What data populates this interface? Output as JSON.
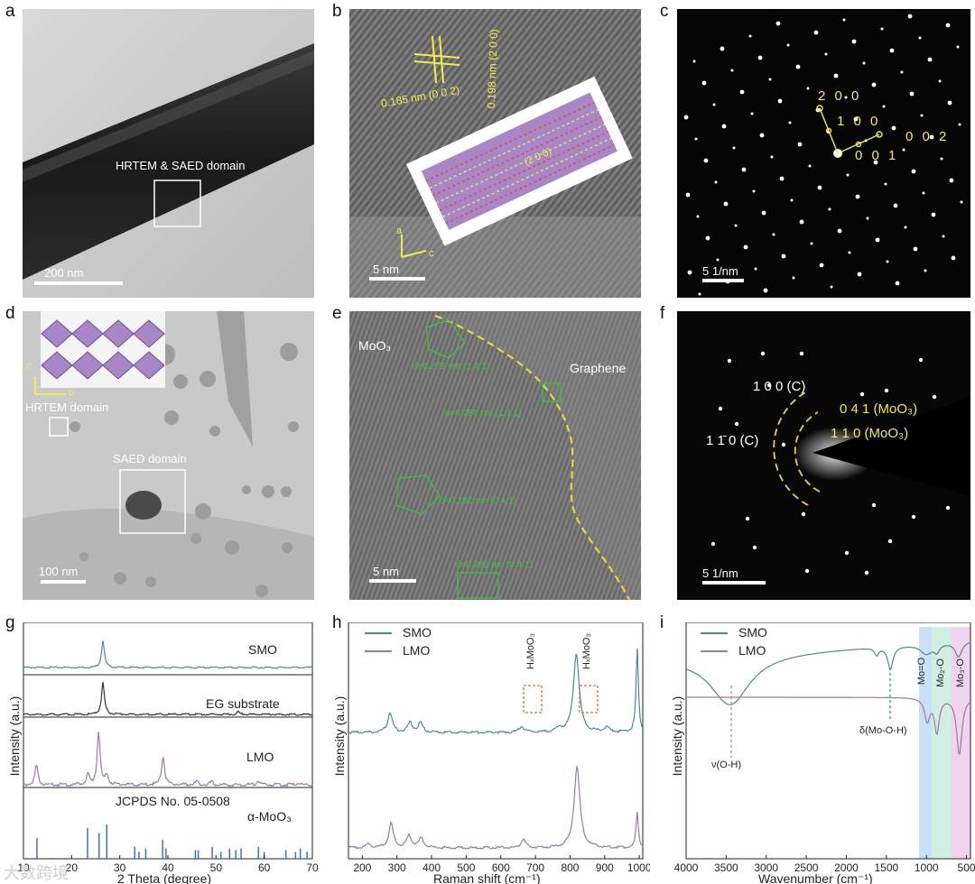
{
  "panel_labels": [
    "a",
    "b",
    "c",
    "d",
    "e",
    "f",
    "g",
    "h",
    "i"
  ],
  "a": {
    "domain_label": "HRTEM & SAED domain",
    "scale": "200 nm"
  },
  "b": {
    "d1": "0.185 nm (0 0 2)",
    "d2": "0.198 nm (2 0 0)",
    "plane": "(2 0 0)",
    "axis_a": "a",
    "axis_c": "c",
    "scale": "5 nm"
  },
  "c": {
    "s200": "2 0 0",
    "s100": "1 0 0",
    "s002": "0 0 2",
    "s001": "0 0 1",
    "scale": "5 1/nm"
  },
  "d": {
    "axis_c": "c",
    "axis_b": "b",
    "hrtem": "HRTEM domain",
    "saed": "SAED domain",
    "scale": "100 nm"
  },
  "e": {
    "moo3": "MoO₃",
    "graphene": "Graphene",
    "l1": "d=0.275 nm (1 4 1)",
    "l2": "d=0.288 nm (1 1 1)",
    "l3": "d=0.282 nm (0 4 1)",
    "l4": "d=0.282 nm (0 4 1)",
    "scale": "5 nm"
  },
  "f": {
    "r1": "1 0 0 (C)",
    "r2": "0 4 1 (MoO₃)",
    "r3": "1 1̄ 0 (C)",
    "r4": "1 1 0 (MoO₃)",
    "scale": "5 1/nm"
  },
  "g": {
    "labels": [
      "SMO",
      "EG substrate",
      "LMO",
      "JCPDS No. 05-0508",
      "α-MoO₃"
    ],
    "ylabel": "Intensity (a.u.)",
    "xlabel": "2 Theta (degree)",
    "ticks": [
      "10",
      "20",
      "30",
      "40",
      "50",
      "60",
      "70"
    ]
  },
  "h": {
    "legend": [
      "SMO",
      "LMO"
    ],
    "ann1": "HₓMoO₃",
    "ann2": "HₓMoO₃",
    "ylabel": "Intensity (a.u.)",
    "xlabel": "Raman shift (cm⁻¹)",
    "ticks": [
      "200",
      "300",
      "400",
      "500",
      "600",
      "700",
      "800",
      "900",
      "1000"
    ]
  },
  "i": {
    "legend": [
      "SMO",
      "LMO"
    ],
    "v": "ν(O-H)",
    "delta": "δ(Mo-O-H)",
    "b1": "Mo=O",
    "b2": "Mo₂-O",
    "b3": "Mo₃-O",
    "ylabel": "Intensity (a.u.)",
    "xlabel": "Wavenumber (cm⁻¹)",
    "ticks": [
      "4000",
      "3500",
      "3000",
      "2500",
      "2000",
      "1500",
      "1000",
      "500"
    ]
  },
  "watermark": "大数跨境",
  "colors": {
    "smo": "#4f8a8e",
    "lmo": "#9a7ca3",
    "yellow": "#f1ee4a",
    "green": "#39c43d",
    "dash": "#e8d73b"
  },
  "chart_data": [
    {
      "type": "line",
      "panel": "g",
      "xlabel": "2 Theta (degree)",
      "ylabel": "Intensity (a.u.)",
      "xlim": [
        10,
        70
      ],
      "series": [
        {
          "name": "SMO",
          "peaks": [
            [
              26.5,
              1.0
            ]
          ]
        },
        {
          "name": "EG substrate",
          "peaks": [
            [
              26.5,
              1.0
            ],
            [
              54.6,
              0.08
            ]
          ]
        },
        {
          "name": "LMO",
          "peaks": [
            [
              12.7,
              0.35
            ],
            [
              23.4,
              0.18
            ],
            [
              25.6,
              1.0
            ],
            [
              27.3,
              0.18
            ],
            [
              39.0,
              0.55
            ],
            [
              46.0,
              0.06
            ],
            [
              49.0,
              0.05
            ],
            [
              58.8,
              0.08
            ],
            [
              67.0,
              0.05
            ]
          ]
        },
        {
          "name": "JCPDS No. 05-0508",
          "sticks": [
            [
              12.8,
              0.6
            ],
            [
              23.3,
              0.9
            ],
            [
              25.7,
              0.75
            ],
            [
              27.3,
              1.0
            ],
            [
              33.1,
              0.35
            ],
            [
              34.0,
              0.2
            ],
            [
              35.4,
              0.3
            ],
            [
              38.9,
              0.55
            ],
            [
              39.6,
              0.3
            ],
            [
              45.7,
              0.25
            ],
            [
              46.3,
              0.25
            ],
            [
              49.2,
              0.35
            ],
            [
              51.0,
              0.2
            ],
            [
              52.8,
              0.3
            ],
            [
              54.1,
              0.25
            ],
            [
              55.2,
              0.3
            ],
            [
              58.8,
              0.35
            ],
            [
              60.0,
              0.2
            ],
            [
              64.5,
              0.25
            ],
            [
              66.5,
              0.2
            ],
            [
              67.5,
              0.3
            ],
            [
              68.9,
              0.2
            ]
          ]
        }
      ]
    },
    {
      "type": "line",
      "panel": "h",
      "xlabel": "Raman shift (cm⁻¹)",
      "ylabel": "Intensity (a.u.)",
      "xlim": [
        160,
        1010
      ],
      "series": [
        {
          "name": "SMO",
          "peaks": [
            [
              280,
              0.25
            ],
            [
              338,
              0.12
            ],
            [
              368,
              0.12
            ],
            [
              660,
              0.08
            ],
            [
              770,
              0.05
            ],
            [
              818,
              1.0
            ],
            [
              905,
              0.06
            ],
            [
              994,
              1.05
            ]
          ]
        },
        {
          "name": "LMO",
          "peaks": [
            [
              218,
              0.05
            ],
            [
              283,
              0.3
            ],
            [
              335,
              0.15
            ],
            [
              370,
              0.12
            ],
            [
              665,
              0.1
            ],
            [
              820,
              1.0
            ],
            [
              994,
              0.45
            ]
          ]
        }
      ]
    },
    {
      "type": "line",
      "panel": "i",
      "xlabel": "Wavenumber (cm⁻¹)",
      "ylabel": "Intensity (a.u.)",
      "xlim": [
        4000,
        450
      ],
      "series": [
        {
          "name": "SMO",
          "features": [
            [
              3450,
              -1.0
            ],
            [
              1620,
              -0.15
            ],
            [
              1450,
              -0.45
            ],
            [
              1000,
              -0.2
            ],
            [
              870,
              -0.15
            ],
            [
              600,
              -0.3
            ]
          ]
        },
        {
          "name": "LMO",
          "features": [
            [
              990,
              -0.6
            ],
            [
              870,
              -0.9
            ],
            [
              590,
              -1.5
            ]
          ]
        }
      ]
    }
  ]
}
